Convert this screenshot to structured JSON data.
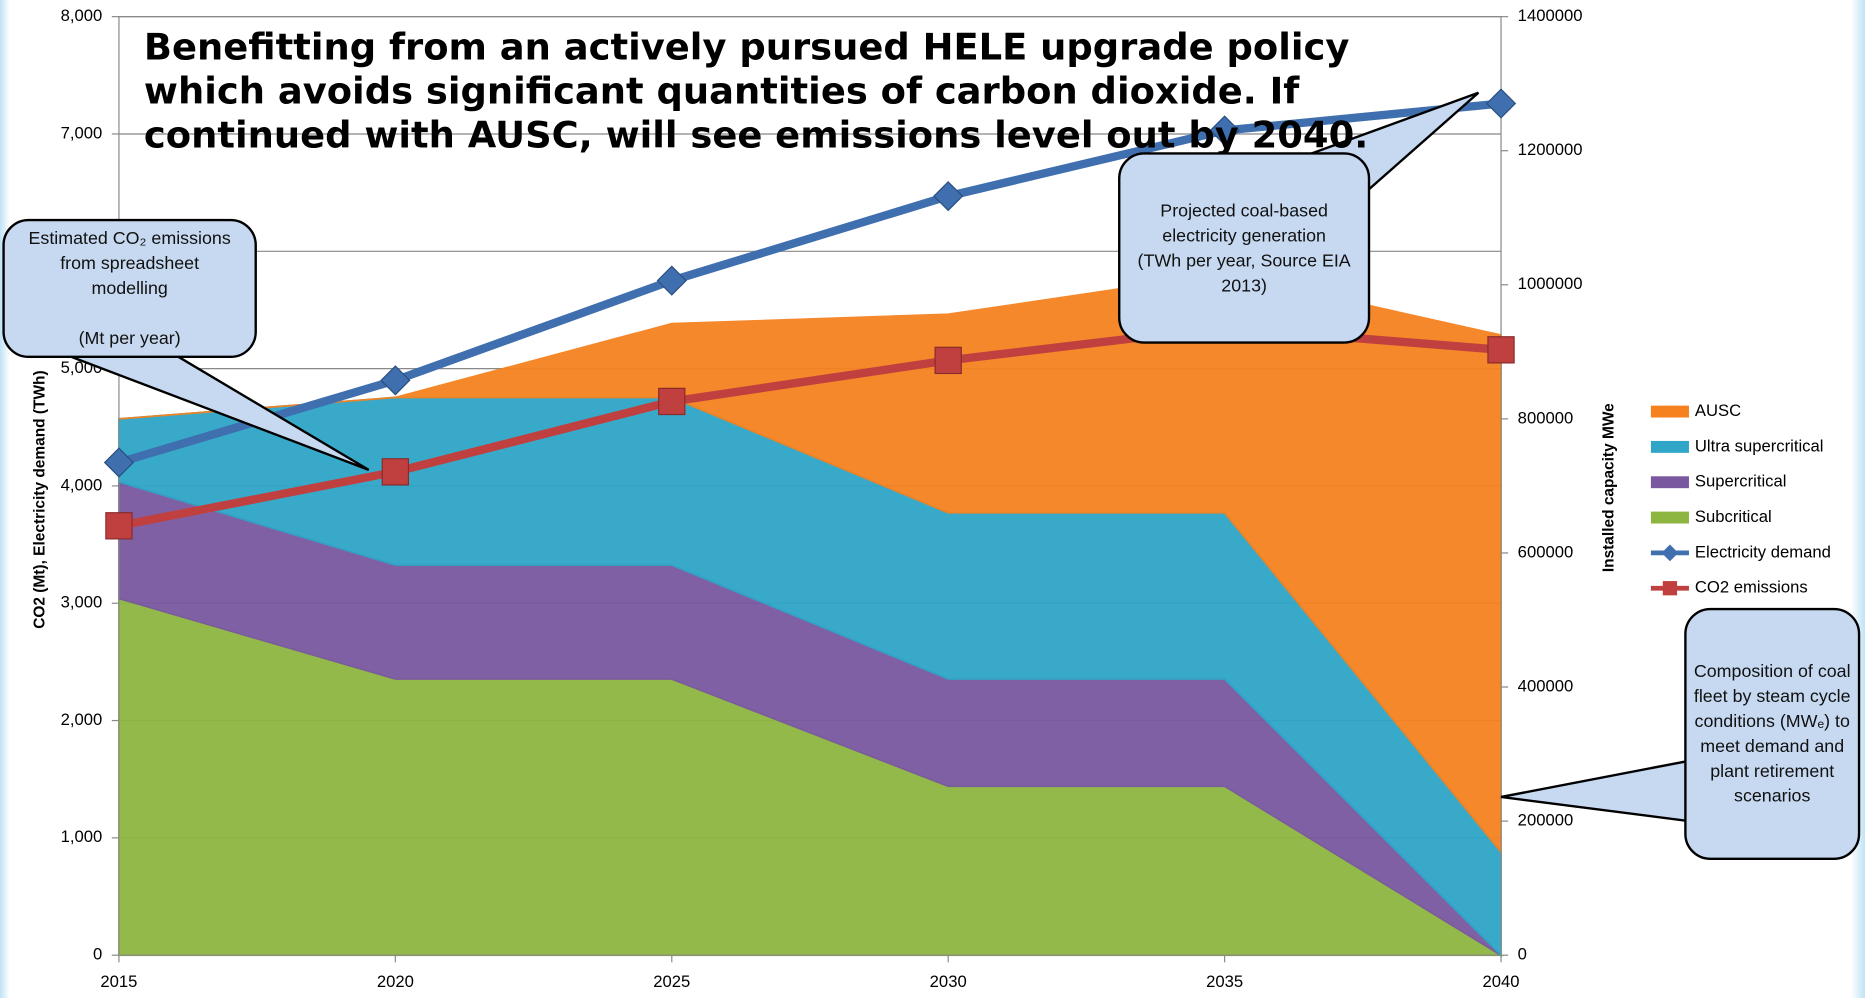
{
  "chart_data": {
    "type": "area",
    "title": "Benefitting from an actively pursued HELE upgrade policy which avoids significant quantities of carbon dioxide. If continued with AUSC, will see emissions level out by 2040.",
    "y_label": "CO2  (Mt), Electricity demand (TWh)",
    "y2_label": "Installed capacity  MWe",
    "x": [
      2015,
      2020,
      2025,
      2030,
      2035,
      2040
    ],
    "xlim": [
      2015,
      2040
    ],
    "xticks": [
      2015,
      2020,
      2025,
      2030,
      2035,
      2040
    ],
    "ylim": [
      0,
      8000
    ],
    "yticks": [
      0,
      {
        "value": 1000,
        "label": "1,000"
      },
      {
        "value": 2000,
        "label": "2,000"
      },
      {
        "value": 3000,
        "label": "3,000"
      },
      {
        "value": 4000,
        "label": "4,000"
      },
      {
        "value": 5000,
        "label": "5,000"
      },
      {
        "value": 6000,
        "label": "6,000"
      },
      {
        "value": 7000,
        "label": "7,000"
      },
      {
        "value": 8000,
        "label": "8,000"
      }
    ],
    "y2lim": [
      0,
      1400000
    ],
    "y2ticks": [
      0,
      200000,
      400000,
      600000,
      800000,
      1000000,
      1200000,
      1400000
    ],
    "grid": true,
    "legend": "right",
    "series": [
      {
        "name": "Subcritical",
        "color": "#8db640",
        "axis": "y2",
        "stacked": true,
        "values": [
          532000,
          412000,
          412000,
          252000,
          252000,
          0
        ]
      },
      {
        "name": "Supercritical",
        "color": "#7a58a0",
        "axis": "y2",
        "stacked": true,
        "values": [
          174000,
          170000,
          170000,
          160000,
          160000,
          0
        ]
      },
      {
        "name": "Ultra supercritical",
        "color": "#2fa5c8",
        "axis": "y2",
        "stacked": true,
        "values": [
          94000,
          250000,
          250000,
          248000,
          248000,
          154000
        ]
      },
      {
        "name": "AUSC",
        "color": "#f5821f",
        "axis": "y2",
        "stacked": true,
        "values": [
          0,
          0,
          110000,
          296000,
          357000,
          771000
        ]
      },
      {
        "name": "Electricity demand",
        "color": "#3f6fae",
        "type": "line",
        "marker": "diamond",
        "values": [
          4200,
          4900,
          5750,
          6470,
          7030,
          7260
        ]
      },
      {
        "name": "CO2 emissions",
        "color": "#c0403f",
        "type": "line",
        "marker": "square",
        "values": [
          3660,
          4120,
          4720,
          5070,
          5350,
          5160
        ]
      }
    ],
    "annotations": [
      {
        "lines": [
          "Estimated CO₂ emissions",
          "from spreadsheet",
          "modelling",
          "",
          "(Mt per year)"
        ]
      },
      {
        "lines": [
          "Projected coal-based",
          "electricity generation",
          "(TWh per year, Source EIA",
          "2013)"
        ]
      },
      {
        "lines": [
          "Composition of coal",
          "fleet by steam cycle",
          "conditions (MWₑ) to",
          "meet demand and",
          "plant retirement",
          "scenarios"
        ]
      }
    ]
  }
}
